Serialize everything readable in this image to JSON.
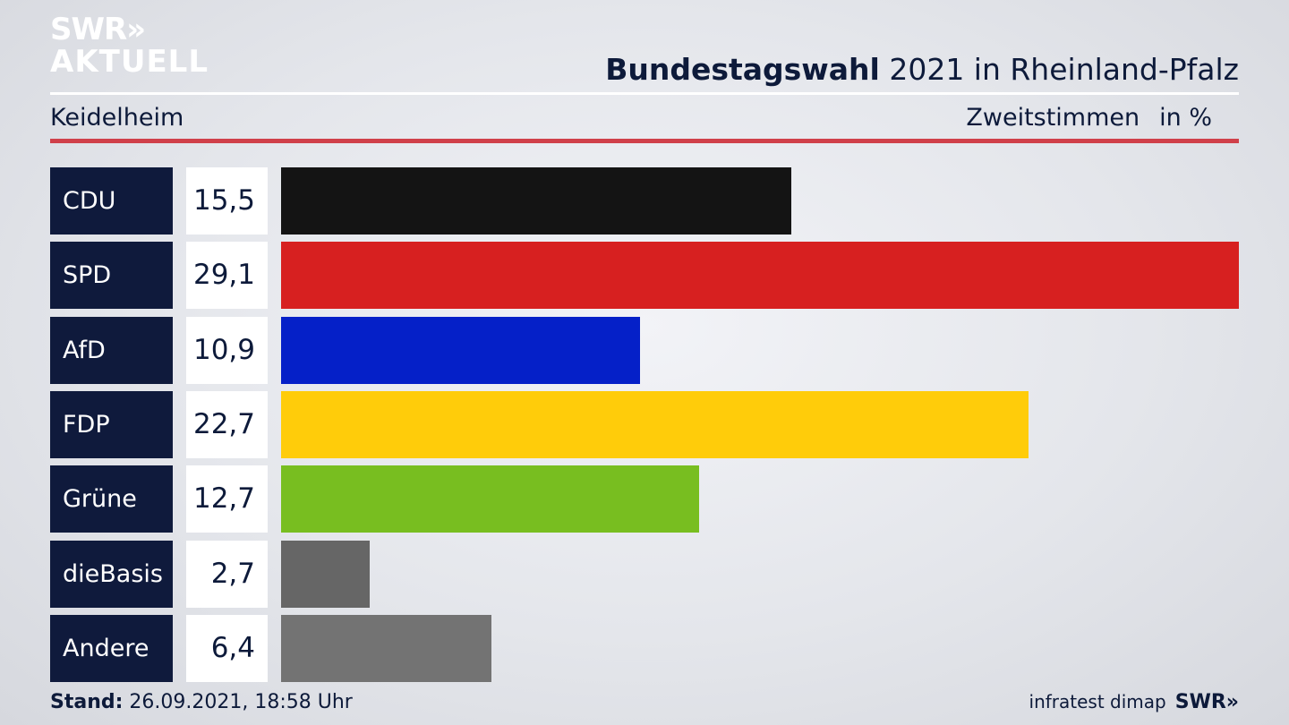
{
  "brand": {
    "line1": "SWR",
    "line1_arrows": "»",
    "line2": "AKTUELL"
  },
  "header": {
    "title_bold": "Bundestagswahl",
    "title_rest": " 2021 in Rheinland-Pfalz",
    "location": "Keidelheim",
    "measure": "Zweitstimmen",
    "unit": "in %"
  },
  "chart_data": {
    "type": "bar",
    "orientation": "horizontal",
    "categories": [
      "CDU",
      "SPD",
      "AfD",
      "FDP",
      "Grüne",
      "dieBasis",
      "Andere"
    ],
    "values": [
      15.5,
      29.1,
      10.9,
      22.7,
      12.7,
      2.7,
      6.4
    ],
    "value_labels": [
      "15,5",
      "29,1",
      "10,9",
      "22,7",
      "12,7",
      "2,7",
      "6,4"
    ],
    "colors": [
      "#141414",
      "#d72020",
      "#0520c8",
      "#ffcc0a",
      "#78be20",
      "#666666",
      "#737373"
    ],
    "xlim": [
      0,
      29.1
    ]
  },
  "footer": {
    "stand_label": "Stand:",
    "stand_value": " 26.09.2021, 18:58 Uhr",
    "source": "infratest dimap",
    "brand": "SWR»"
  }
}
